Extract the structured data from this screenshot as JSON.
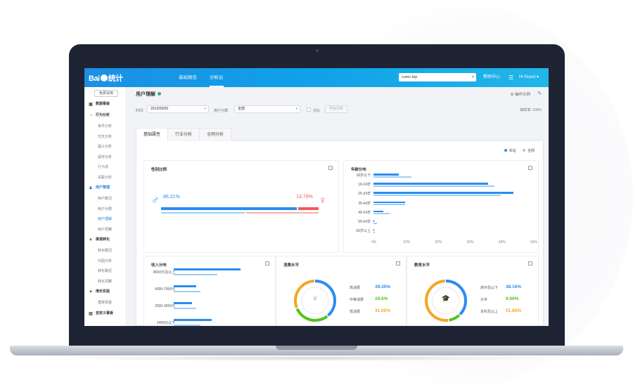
{
  "app": {
    "logo_text": "Bai",
    "logo_suffix": "统计"
  },
  "topbar": {
    "nav": [
      {
        "label": "基础报告"
      },
      {
        "label": "分析云"
      }
    ],
    "site_select": "cumc.top",
    "help": "帮助中心",
    "menu_icon": "list-icon",
    "user": "Hi Guest"
  },
  "sidebar": {
    "trial_button": "免费试用",
    "items": [
      {
        "label": "数据看板",
        "type": "group",
        "icon": "dashboard-icon"
      },
      {
        "label": "行为分析",
        "type": "group",
        "icon": "behavior-icon"
      },
      {
        "label": "事件分析",
        "type": "sub"
      },
      {
        "label": "交叉分析",
        "type": "sub"
      },
      {
        "label": "漏斗分析",
        "type": "sub"
      },
      {
        "label": "留存分析",
        "type": "sub"
      },
      {
        "label": "行为流",
        "type": "sub"
      },
      {
        "label": "关联分析",
        "type": "sub"
      },
      {
        "label": "用户管理",
        "type": "group",
        "icon": "user-icon",
        "active": true
      },
      {
        "label": "用户概况",
        "type": "sub"
      },
      {
        "label": "用户分群",
        "type": "sub"
      },
      {
        "label": "用户理解",
        "type": "sub",
        "active": true
      },
      {
        "label": "用户洞察",
        "type": "sub"
      },
      {
        "label": "渠道转化",
        "type": "group",
        "icon": "filter-icon"
      },
      {
        "label": "转化概况",
        "type": "sub"
      },
      {
        "label": "归因分析",
        "type": "sub"
      },
      {
        "label": "转化路径",
        "type": "sub"
      },
      {
        "label": "转化洞察",
        "type": "sub"
      },
      {
        "label": "增长实验",
        "type": "group",
        "icon": "bulb-icon"
      },
      {
        "label": "框架百度",
        "type": "sub"
      },
      {
        "label": "自定义看板",
        "type": "group",
        "icon": "board-icon"
      }
    ]
  },
  "page": {
    "title": "用户理解",
    "ops": "⚙ 操作示例",
    "filters": {
      "time_label": "时间:",
      "time_value": "2019/09/09",
      "group_label": "用户分群:",
      "group_value": "全部",
      "compare_label": "对比",
      "start_button": "开始分析",
      "metric": "抽样率:  100%"
    },
    "tabs": [
      {
        "label": "基础属性",
        "active": true
      },
      {
        "label": "行业分析"
      },
      {
        "label": "全网分析"
      }
    ],
    "legend": {
      "site": "本站",
      "network": "全网"
    }
  },
  "colors": {
    "site": "#2b8cf0",
    "network": "#9fcdf7",
    "female": "#ef5a5a",
    "female_light": "#f7b0b0",
    "orange": "#f5a623",
    "green": "#52c41a",
    "blue_value": "#2b8cf0"
  },
  "gender": {
    "title": "性别比例",
    "male_pct_label": "86.21%",
    "female_pct_label": "13.79%",
    "male_fraction": 0.8621,
    "network_male_fraction": 0.53
  },
  "age": {
    "title": "年龄分布",
    "categories": [
      "18岁以下",
      "18-24岁",
      "25-34岁",
      "35-44岁",
      "45-54岁",
      "55-64岁",
      "65岁以上"
    ],
    "site": [
      8,
      36,
      44,
      10,
      3,
      0.3,
      0.2
    ],
    "network": [
      12,
      38,
      40,
      10,
      5,
      1,
      0.4
    ],
    "ticks": [
      "0%",
      "10%",
      "20%",
      "30%",
      "40%",
      "50%"
    ],
    "xmax": 50
  },
  "income": {
    "title": "收入分布",
    "categories": [
      "8000元及以上",
      "4000-7999元",
      "2500-3999元",
      "2499元以下"
    ],
    "site": [
      95,
      32,
      26,
      54
    ],
    "network": [
      62,
      38,
      32,
      38
    ]
  },
  "consumption": {
    "title": "消费水平",
    "center_icon": "¥",
    "rows": [
      {
        "label": "高消费",
        "value": "39.35%",
        "color": "#2b8cf0"
      },
      {
        "label": "中等消费",
        "value": "29.6%",
        "color": "#52c41a"
      },
      {
        "label": "低消费",
        "value": "31.05%",
        "color": "#f5a623"
      }
    ],
    "fractions": [
      0.3935,
      0.296,
      0.3105
    ]
  },
  "education": {
    "title": "教育水平",
    "center_icon": "🎓",
    "rows": [
      {
        "label": "高中及以下",
        "value": "38.16%",
        "color": "#2b8cf0"
      },
      {
        "label": "大专",
        "value": "9.99%",
        "color": "#52c41a"
      },
      {
        "label": "本科及以上",
        "value": "51.85%",
        "color": "#f5a623"
      }
    ],
    "fractions": [
      0.3816,
      0.0999,
      0.5185
    ]
  }
}
